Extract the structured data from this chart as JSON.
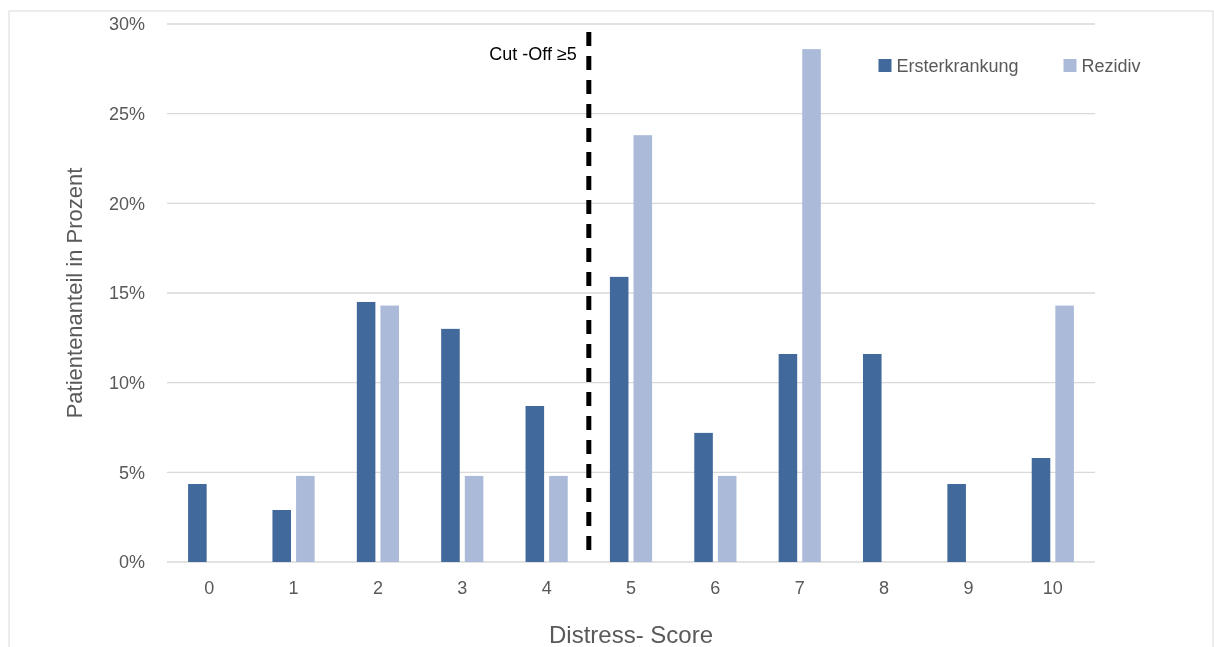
{
  "chart_data": {
    "type": "bar",
    "xlabel": "Distress- Score",
    "ylabel": "Patientenanteil in Prozent",
    "categories": [
      "0",
      "1",
      "2",
      "3",
      "4",
      "5",
      "6",
      "7",
      "8",
      "9",
      "10"
    ],
    "series": [
      {
        "name": "Ersterkrankung",
        "color": "#41699b",
        "values": [
          4.35,
          2.9,
          14.5,
          13.0,
          8.7,
          15.9,
          7.2,
          11.6,
          11.6,
          4.35,
          5.8
        ]
      },
      {
        "name": "Rezidiv",
        "color": "#aabad8",
        "values": [
          0,
          4.8,
          14.3,
          4.8,
          4.8,
          23.8,
          4.8,
          28.6,
          0,
          0,
          14.3
        ]
      }
    ],
    "ylim": [
      0,
      30
    ],
    "yticks": [
      {
        "value": 0,
        "label": "0%"
      },
      {
        "value": 5,
        "label": "5%"
      },
      {
        "value": 10,
        "label": "10%"
      },
      {
        "value": 15,
        "label": "15%"
      },
      {
        "value": 20,
        "label": "20%"
      },
      {
        "value": 25,
        "label": "25%"
      },
      {
        "value": 30,
        "label": "30%"
      }
    ],
    "grid": "y",
    "legend": "top right",
    "annotations": [
      "Cut -Off ≥5"
    ]
  }
}
